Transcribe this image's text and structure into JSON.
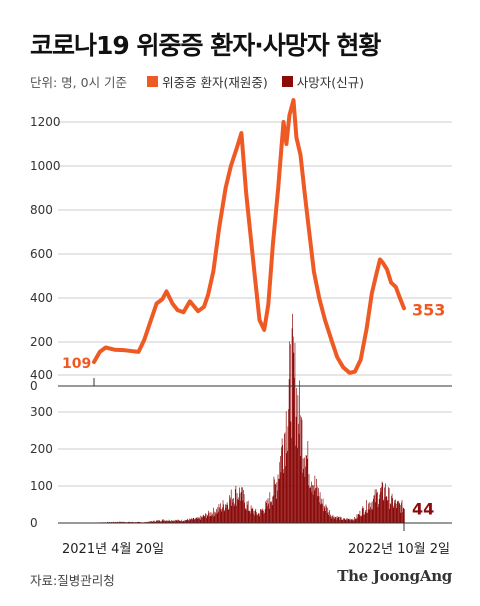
{
  "title": "코로나19 위중증 환자·사망자 현황",
  "unit_label": "단위: 명, 0시 기준",
  "source": "자료:질병관리청",
  "brand": "The JoongAng",
  "colors": {
    "severe": "#ef5a24",
    "deaths": "#8b0a0a",
    "grid": "#cccccc",
    "axis": "#333333"
  },
  "chart_data": [
    {
      "type": "line",
      "series": [
        {
          "name": "위중증 환자(재원중)",
          "start_label": "109",
          "end_label": "353",
          "points": [
            [
              "2021-04-20",
              109
            ],
            [
              "2021-04-30",
              155
            ],
            [
              "2021-05-10",
              175
            ],
            [
              "2021-05-25",
              165
            ],
            [
              "2021-06-10",
              163
            ],
            [
              "2021-06-25",
              158
            ],
            [
              "2021-07-05",
              155
            ],
            [
              "2021-07-15",
              210
            ],
            [
              "2021-07-25",
              290
            ],
            [
              "2021-08-05",
              375
            ],
            [
              "2021-08-15",
              395
            ],
            [
              "2021-08-22",
              430
            ],
            [
              "2021-09-01",
              375
            ],
            [
              "2021-09-10",
              345
            ],
            [
              "2021-09-20",
              335
            ],
            [
              "2021-10-01",
              385
            ],
            [
              "2021-10-15",
              340
            ],
            [
              "2021-10-25",
              360
            ],
            [
              "2021-11-01",
              415
            ],
            [
              "2021-11-10",
              520
            ],
            [
              "2021-11-20",
              720
            ],
            [
              "2021-12-01",
              900
            ],
            [
              "2021-12-10",
              1000
            ],
            [
              "2021-12-20",
              1080
            ],
            [
              "2021-12-28",
              1150
            ],
            [
              "2022-01-05",
              880
            ],
            [
              "2022-01-12",
              700
            ],
            [
              "2022-01-20",
              500
            ],
            [
              "2022-01-28",
              300
            ],
            [
              "2022-02-05",
              255
            ],
            [
              "2022-02-12",
              370
            ],
            [
              "2022-02-20",
              650
            ],
            [
              "2022-03-01",
              900
            ],
            [
              "2022-03-10",
              1200
            ],
            [
              "2022-03-15",
              1100
            ],
            [
              "2022-03-20",
              1230
            ],
            [
              "2022-03-27",
              1300
            ],
            [
              "2022-04-01",
              1130
            ],
            [
              "2022-04-08",
              1050
            ],
            [
              "2022-04-15",
              880
            ],
            [
              "2022-04-22",
              720
            ],
            [
              "2022-05-01",
              520
            ],
            [
              "2022-05-10",
              400
            ],
            [
              "2022-05-20",
              300
            ],
            [
              "2022-06-01",
              200
            ],
            [
              "2022-06-10",
              130
            ],
            [
              "2022-06-20",
              85
            ],
            [
              "2022-07-01",
              60
            ],
            [
              "2022-07-10",
              65
            ],
            [
              "2022-07-20",
              120
            ],
            [
              "2022-07-30",
              260
            ],
            [
              "2022-08-08",
              420
            ],
            [
              "2022-08-15",
              500
            ],
            [
              "2022-08-22",
              575
            ],
            [
              "2022-08-27",
              560
            ],
            [
              "2022-09-03",
              530
            ],
            [
              "2022-09-10",
              470
            ],
            [
              "2022-09-18",
              450
            ],
            [
              "2022-09-25",
              400
            ],
            [
              "2022-10-02",
              353
            ]
          ]
        }
      ],
      "ylim": [
        0,
        1300
      ],
      "yticks": [
        0,
        200,
        400,
        600,
        800,
        1000,
        1200
      ]
    },
    {
      "type": "bar",
      "series": [
        {
          "name": "사망자(신규)",
          "end_label": "44",
          "envelope": [
            [
              "2021-04-20",
              1
            ],
            [
              "2021-06-01",
              3
            ],
            [
              "2021-07-15",
              2
            ],
            [
              "2021-08-15",
              8
            ],
            [
              "2021-09-15",
              7
            ],
            [
              "2021-10-15",
              12
            ],
            [
              "2021-11-15",
              35
            ],
            [
              "2021-12-01",
              55
            ],
            [
              "2021-12-15",
              80
            ],
            [
              "2021-12-25",
              85
            ],
            [
              "2022-01-10",
              40
            ],
            [
              "2022-01-25",
              25
            ],
            [
              "2022-02-10",
              50
            ],
            [
              "2022-02-25",
              110
            ],
            [
              "2022-03-05",
              190
            ],
            [
              "2022-03-15",
              300
            ],
            [
              "2022-03-24",
              430
            ],
            [
              "2022-04-01",
              350
            ],
            [
              "2022-04-10",
              250
            ],
            [
              "2022-04-20",
              170
            ],
            [
              "2022-05-01",
              110
            ],
            [
              "2022-05-15",
              55
            ],
            [
              "2022-06-01",
              20
            ],
            [
              "2022-06-20",
              10
            ],
            [
              "2022-07-10",
              12
            ],
            [
              "2022-07-25",
              40
            ],
            [
              "2022-08-10",
              65
            ],
            [
              "2022-08-20",
              80
            ],
            [
              "2022-08-31",
              90
            ],
            [
              "2022-09-10",
              60
            ],
            [
              "2022-09-20",
              50
            ],
            [
              "2022-10-02",
              44
            ]
          ]
        }
      ],
      "ylim": [
        0,
        450
      ],
      "yticks": [
        0,
        100,
        200,
        300,
        400
      ]
    }
  ],
  "x_range": [
    "2021-04-20",
    "2022-10-02"
  ],
  "x_start_label": "2021년 4월 20일",
  "x_end_label": "2022년 10월 2일"
}
